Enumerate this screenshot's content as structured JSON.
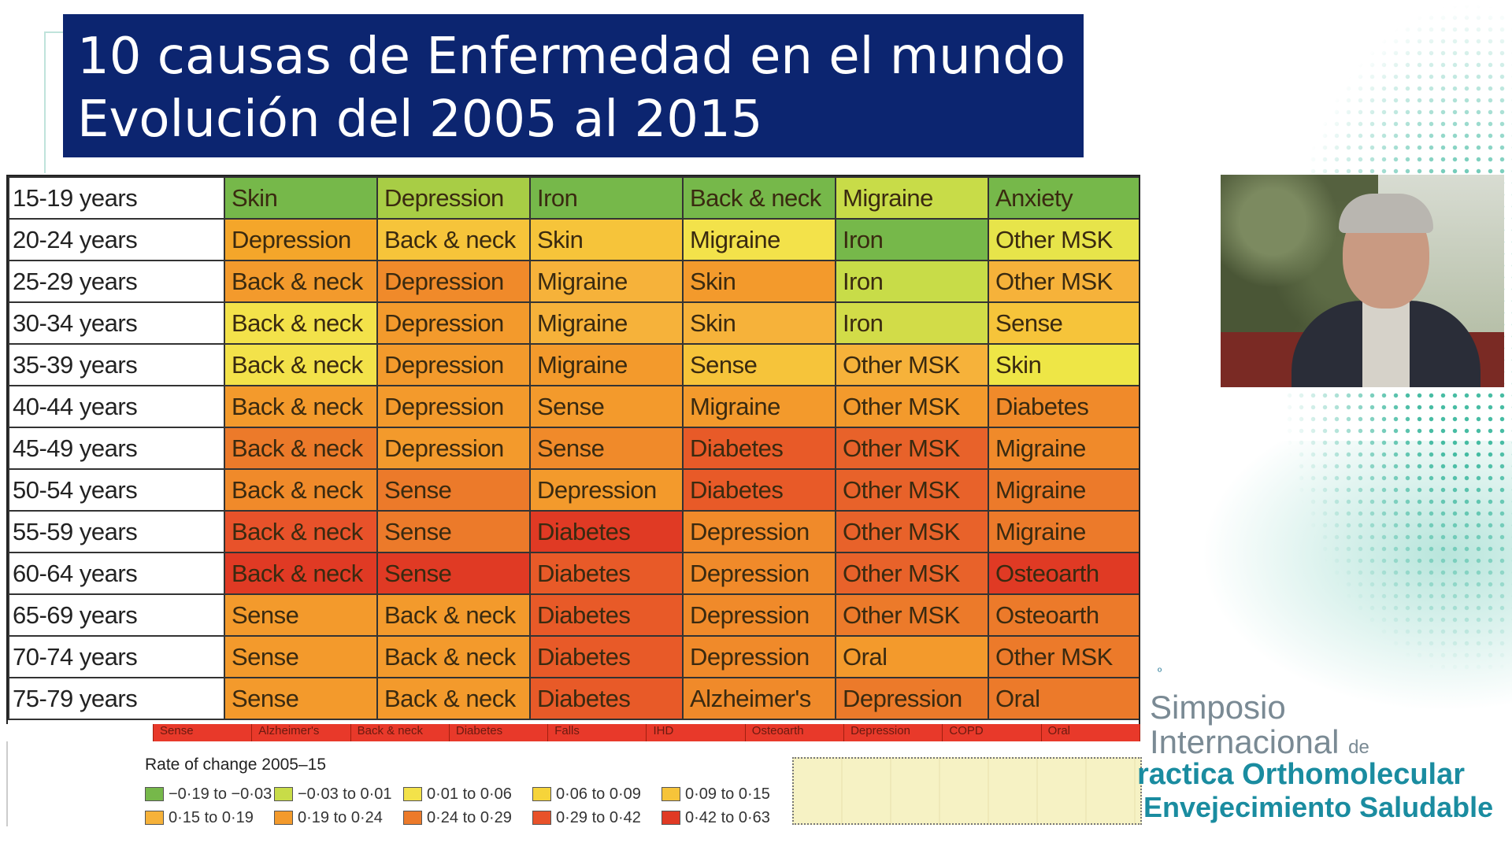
{
  "slide": {
    "title_line1": "10 causas de Enfermedad en el mundo",
    "title_line2": "Evolución del 2005 al 2015"
  },
  "table": {
    "rows": [
      {
        "age": "15-19 years",
        "cells": [
          [
            "Skin",
            "#76b84a"
          ],
          [
            "Depression",
            "#a8cd45"
          ],
          [
            "Iron",
            "#76b84a"
          ],
          [
            "Back & neck",
            "#76b84a"
          ],
          [
            "Migraine",
            "#c8dc48"
          ],
          [
            "Anxiety",
            "#76b84a"
          ]
        ]
      },
      {
        "age": "20-24 years",
        "cells": [
          [
            "Depression",
            "#f4a62a"
          ],
          [
            "Back & neck",
            "#f6c43a"
          ],
          [
            "Skin",
            "#f6c43a"
          ],
          [
            "Migraine",
            "#f3e24a"
          ],
          [
            "Iron",
            "#76b84a"
          ],
          [
            "Other MSK",
            "#e7e44a"
          ]
        ]
      },
      {
        "age": "25-29 years",
        "cells": [
          [
            "Back & neck",
            "#f39a2c"
          ],
          [
            "Depression",
            "#f08a2a"
          ],
          [
            "Migraine",
            "#f6b23a"
          ],
          [
            "Skin",
            "#f39a2c"
          ],
          [
            "Iron",
            "#c8dc48"
          ],
          [
            "Other MSK",
            "#f6b23a"
          ]
        ]
      },
      {
        "age": "30-34 years",
        "cells": [
          [
            "Back & neck",
            "#f3e24a"
          ],
          [
            "Depression",
            "#f39a2c"
          ],
          [
            "Migraine",
            "#f6b23a"
          ],
          [
            "Skin",
            "#f6b23a"
          ],
          [
            "Iron",
            "#d2dc48"
          ],
          [
            "Sense",
            "#f6c43a"
          ]
        ]
      },
      {
        "age": "35-39 years",
        "cells": [
          [
            "Back & neck",
            "#f3e24a"
          ],
          [
            "Depression",
            "#f39a2c"
          ],
          [
            "Migraine",
            "#f39a2c"
          ],
          [
            "Sense",
            "#f6c43a"
          ],
          [
            "Other MSK",
            "#f6b23a"
          ],
          [
            "Skin",
            "#eee646"
          ]
        ]
      },
      {
        "age": "40-44 years",
        "cells": [
          [
            "Back & neck",
            "#f39a2c"
          ],
          [
            "Depression",
            "#f39a2c"
          ],
          [
            "Sense",
            "#f39a2c"
          ],
          [
            "Migraine",
            "#f39a2c"
          ],
          [
            "Other MSK",
            "#f39a2c"
          ],
          [
            "Diabetes",
            "#f08a2a"
          ]
        ]
      },
      {
        "age": "45-49 years",
        "cells": [
          [
            "Back & neck",
            "#ec7a2a"
          ],
          [
            "Depression",
            "#f39a2c"
          ],
          [
            "Sense",
            "#f08a2a"
          ],
          [
            "Diabetes",
            "#e85a28"
          ],
          [
            "Other MSK",
            "#e8622a"
          ],
          [
            "Migraine",
            "#f08a2a"
          ]
        ]
      },
      {
        "age": "50-54 years",
        "cells": [
          [
            "Back & neck",
            "#f08a2a"
          ],
          [
            "Sense",
            "#ec7a2a"
          ],
          [
            "Depression",
            "#f39a2c"
          ],
          [
            "Diabetes",
            "#e85a28"
          ],
          [
            "Other MSK",
            "#e8622a"
          ],
          [
            "Migraine",
            "#ec7a2a"
          ]
        ]
      },
      {
        "age": "55-59 years",
        "cells": [
          [
            "Back & neck",
            "#e8522a"
          ],
          [
            "Sense",
            "#ec7a2a"
          ],
          [
            "Diabetes",
            "#e03a24"
          ],
          [
            "Depression",
            "#f08a2a"
          ],
          [
            "Other MSK",
            "#e8622a"
          ],
          [
            "Migraine",
            "#ec7a2a"
          ]
        ]
      },
      {
        "age": "60-64 years",
        "cells": [
          [
            "Back & neck",
            "#e03a24"
          ],
          [
            "Sense",
            "#e03a24"
          ],
          [
            "Diabetes",
            "#e85a28"
          ],
          [
            "Depression",
            "#f08a2a"
          ],
          [
            "Other MSK",
            "#e8622a"
          ],
          [
            "Osteoarth",
            "#e03a24"
          ]
        ]
      },
      {
        "age": "65-69 years",
        "cells": [
          [
            "Sense",
            "#f39a2c"
          ],
          [
            "Back & neck",
            "#f39a2c"
          ],
          [
            "Diabetes",
            "#e85a28"
          ],
          [
            "Depression",
            "#f08a2a"
          ],
          [
            "Other MSK",
            "#ec7a2a"
          ],
          [
            "Osteoarth",
            "#ec7a2a"
          ]
        ]
      },
      {
        "age": "70-74 years",
        "cells": [
          [
            "Sense",
            "#f39a2c"
          ],
          [
            "Back & neck",
            "#f39a2c"
          ],
          [
            "Diabetes",
            "#e85a28"
          ],
          [
            "Depression",
            "#f08a2a"
          ],
          [
            "Oral",
            "#f39a2c"
          ],
          [
            "Other MSK",
            "#ec7a2a"
          ]
        ]
      },
      {
        "age": "75-79 years",
        "cells": [
          [
            "Sense",
            "#f39a2c"
          ],
          [
            "Back & neck",
            "#f39a2c"
          ],
          [
            "Diabetes",
            "#e85a28"
          ],
          [
            "Alzheimer's",
            "#f08a2a"
          ],
          [
            "Depression",
            "#ec7a2a"
          ],
          [
            "Oral",
            "#ec7a2a"
          ]
        ]
      }
    ],
    "strip": [
      "Sense",
      "Alzheimer's",
      "Back & neck",
      "Diabetes",
      "Falls",
      "IHD",
      "Osteoarth",
      "Depression",
      "COPD",
      "Oral"
    ]
  },
  "legend": {
    "title": "Rate of change 2005–15",
    "items": [
      {
        "label": "−0·19 to −0·03",
        "color": "#76b84a"
      },
      {
        "label": "−0·03 to 0·01",
        "color": "#c8dc48"
      },
      {
        "label": "0·01 to 0·06",
        "color": "#f3e24a"
      },
      {
        "label": "0·06 to 0·09",
        "color": "#f6d43a"
      },
      {
        "label": "0·09 to 0·15",
        "color": "#f6c43a"
      },
      {
        "label": "0·15 to 0·19",
        "color": "#f6b23a"
      },
      {
        "label": "0·19 to 0·24",
        "color": "#f39a2c"
      },
      {
        "label": "0·24 to 0·29",
        "color": "#ec7a2a"
      },
      {
        "label": "0·29 to 0·42",
        "color": "#e8522a"
      },
      {
        "label": "0·42 to 0·63",
        "color": "#e03a24"
      }
    ]
  },
  "logo": {
    "num": "º",
    "line1": "Simposio",
    "line2": "Internacional",
    "line2_small": "de",
    "line3": "ractica Orthomolecular",
    "line4": "Envejecimiento Saludable"
  }
}
